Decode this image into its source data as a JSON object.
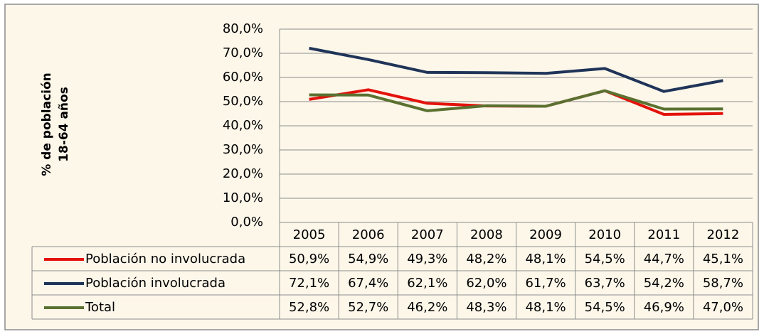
{
  "chart_data": {
    "type": "line",
    "y_label": [
      "% de población",
      "18-64 años"
    ],
    "categories": [
      "2005",
      "2006",
      "2007",
      "2008",
      "2009",
      "2010",
      "2011",
      "2012"
    ],
    "series": [
      {
        "name": "Población no involucrada",
        "color": "#e3120b",
        "values": [
          50.9,
          54.9,
          49.3,
          48.2,
          48.1,
          54.5,
          44.7,
          45.1
        ],
        "value_labels": [
          "50,9%",
          "54,9%",
          "49,3%",
          "48,2%",
          "48,1%",
          "54,5%",
          "44,7%",
          "45,1%"
        ]
      },
      {
        "name": "Población involucrada",
        "color": "#1f3458",
        "values": [
          72.1,
          67.4,
          62.1,
          62.0,
          61.7,
          63.7,
          54.2,
          58.7
        ],
        "value_labels": [
          "72,1%",
          "67,4%",
          "62,1%",
          "62,0%",
          "61,7%",
          "63,7%",
          "54,2%",
          "58,7%"
        ]
      },
      {
        "name": "Total",
        "color": "#5a7130",
        "values": [
          52.8,
          52.7,
          46.2,
          48.3,
          48.1,
          54.5,
          46.9,
          47.0
        ],
        "value_labels": [
          "52,8%",
          "52,7%",
          "46,2%",
          "48,3%",
          "48,1%",
          "54,5%",
          "46,9%",
          "47,0%"
        ]
      }
    ],
    "ylim": [
      0,
      80
    ],
    "yticks": [
      {
        "value": 0,
        "label": "0,0%"
      },
      {
        "value": 10,
        "label": "10,0%"
      },
      {
        "value": 20,
        "label": "20,0%"
      },
      {
        "value": 30,
        "label": "30,0%"
      },
      {
        "value": 40,
        "label": "40,0%"
      },
      {
        "value": 50,
        "label": "50,0%"
      },
      {
        "value": 60,
        "label": "60,0%"
      },
      {
        "value": 70,
        "label": "70,0%"
      },
      {
        "value": 80,
        "label": "80,0%"
      }
    ],
    "grid": true,
    "legend": "table"
  }
}
